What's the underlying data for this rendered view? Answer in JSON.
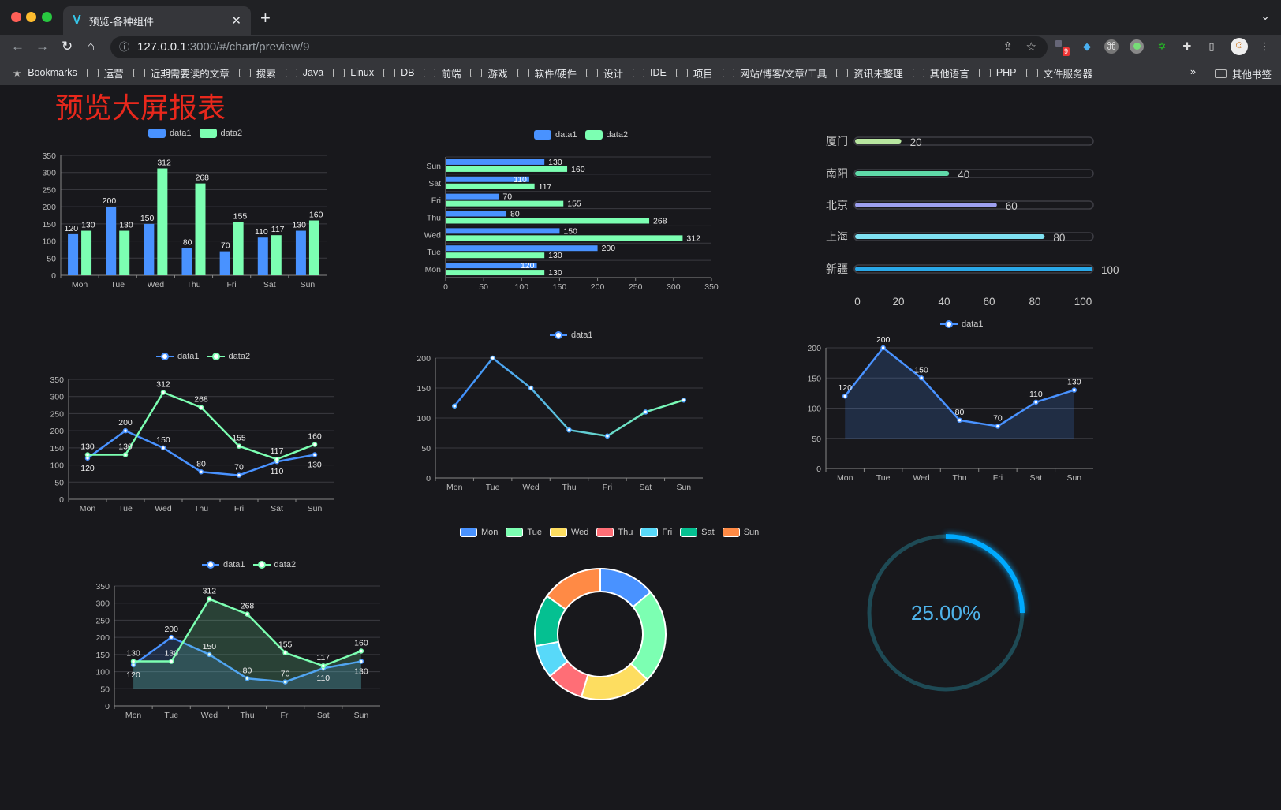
{
  "browser": {
    "tab_title": "预览-各种组件",
    "url_host": "127.0.0.1",
    "url_rest": ":3000/#/chart/preview/9",
    "ext_badge": "9",
    "bookmarks": [
      "Bookmarks",
      "运营",
      "近期需要读的文章",
      "搜索",
      "Java",
      "Linux",
      "DB",
      "前端",
      "游戏",
      "软件/硬件",
      "设计",
      "IDE",
      "项目",
      "网站/博客/文章/工具",
      "资讯未整理",
      "其他语言",
      "PHP",
      "文件服务器"
    ],
    "more": "»",
    "other_bookmarks": "其他书签"
  },
  "page": {
    "title": "预览大屏报表"
  },
  "colors": {
    "data1": "#4992ff",
    "data2": "#7cffb2",
    "grid": "#3a3a40",
    "axis_text": "#bbbbbb"
  },
  "legends": {
    "data1": "data1",
    "data2": "data2"
  },
  "chart_data": [
    {
      "id": "bar",
      "type": "bar",
      "categories": [
        "Mon",
        "Tue",
        "Wed",
        "Thu",
        "Fri",
        "Sat",
        "Sun"
      ],
      "series": [
        {
          "name": "data1",
          "values": [
            120,
            200,
            150,
            80,
            70,
            110,
            130
          ]
        },
        {
          "name": "data2",
          "values": [
            130,
            130,
            312,
            268,
            155,
            117,
            160
          ]
        }
      ],
      "ylim": [
        0,
        350
      ],
      "yticks": [
        0,
        50,
        100,
        150,
        200,
        250,
        300,
        350
      ],
      "legend": "top"
    },
    {
      "id": "hbar",
      "type": "bar",
      "orientation": "horizontal",
      "categories": [
        "Mon",
        "Tue",
        "Wed",
        "Thu",
        "Fri",
        "Sat",
        "Sun"
      ],
      "series": [
        {
          "name": "data1",
          "values": [
            120,
            200,
            150,
            80,
            70,
            110,
            130
          ]
        },
        {
          "name": "data2",
          "values": [
            130,
            130,
            312,
            268,
            155,
            117,
            160
          ]
        }
      ],
      "xlim": [
        0,
        350
      ],
      "xticks": [
        0,
        50,
        100,
        150,
        200,
        250,
        300,
        350
      ],
      "legend": "top"
    },
    {
      "id": "progress",
      "type": "bar",
      "orientation": "horizontal",
      "categories": [
        "厦门",
        "南阳",
        "北京",
        "上海",
        "新疆"
      ],
      "values": [
        20,
        40,
        60,
        80,
        100
      ],
      "colors": [
        "#b8e6a0",
        "#5fd9a8",
        "#9d9ff0",
        "#7fe1f2",
        "#2aa8e8"
      ],
      "xlim": [
        0,
        100
      ],
      "xticks": [
        0,
        20,
        40,
        60,
        80,
        100
      ]
    },
    {
      "id": "line",
      "type": "line",
      "categories": [
        "Mon",
        "Tue",
        "Wed",
        "Thu",
        "Fri",
        "Sat",
        "Sun"
      ],
      "series": [
        {
          "name": "data1",
          "values": [
            120,
            200,
            150,
            80,
            70,
            110,
            130
          ]
        },
        {
          "name": "data2",
          "values": [
            130,
            130,
            312,
            268,
            155,
            117,
            160
          ]
        }
      ],
      "ylim": [
        0,
        350
      ],
      "yticks": [
        0,
        50,
        100,
        150,
        200,
        250,
        300,
        350
      ],
      "legend": "top"
    },
    {
      "id": "line-gradient",
      "type": "line",
      "categories": [
        "Mon",
        "Tue",
        "Wed",
        "Thu",
        "Fri",
        "Sat",
        "Sun"
      ],
      "series": [
        {
          "name": "data1",
          "values": [
            120,
            200,
            150,
            80,
            70,
            110,
            130
          ]
        }
      ],
      "ylim": [
        0,
        200
      ],
      "yticks": [
        0,
        50,
        100,
        150,
        200
      ],
      "legend": "top"
    },
    {
      "id": "area",
      "type": "area",
      "categories": [
        "Mon",
        "Tue",
        "Wed",
        "Thu",
        "Fri",
        "Sat",
        "Sun"
      ],
      "series": [
        {
          "name": "data1",
          "values": [
            120,
            200,
            150,
            80,
            70,
            110,
            130
          ]
        }
      ],
      "ylim": [
        0,
        200
      ],
      "yticks": [
        0,
        50,
        100,
        150,
        200
      ],
      "legend": "top"
    },
    {
      "id": "area-multi",
      "type": "area",
      "categories": [
        "Mon",
        "Tue",
        "Wed",
        "Thu",
        "Fri",
        "Sat",
        "Sun"
      ],
      "series": [
        {
          "name": "data1",
          "values": [
            120,
            200,
            150,
            80,
            70,
            110,
            130
          ]
        },
        {
          "name": "data2",
          "values": [
            130,
            130,
            312,
            268,
            155,
            117,
            160
          ]
        }
      ],
      "ylim": [
        0,
        350
      ],
      "yticks": [
        0,
        50,
        100,
        150,
        200,
        250,
        300,
        350
      ],
      "legend": "top"
    },
    {
      "id": "donut",
      "type": "pie",
      "categories": [
        "Mon",
        "Tue",
        "Wed",
        "Thu",
        "Fri",
        "Sat",
        "Sun"
      ],
      "values": [
        120,
        200,
        150,
        80,
        70,
        110,
        130
      ],
      "colors": [
        "#4992ff",
        "#7cffb2",
        "#fddd60",
        "#ff6e76",
        "#58d9f9",
        "#05c091",
        "#ff8a45"
      ],
      "legend": "top"
    },
    {
      "id": "gauge",
      "type": "pie",
      "value": 0.25,
      "label": "25.00%",
      "colors": {
        "fill": "#00aaff",
        "track": "#1e4a55",
        "text": "#4fb3ea"
      }
    }
  ]
}
